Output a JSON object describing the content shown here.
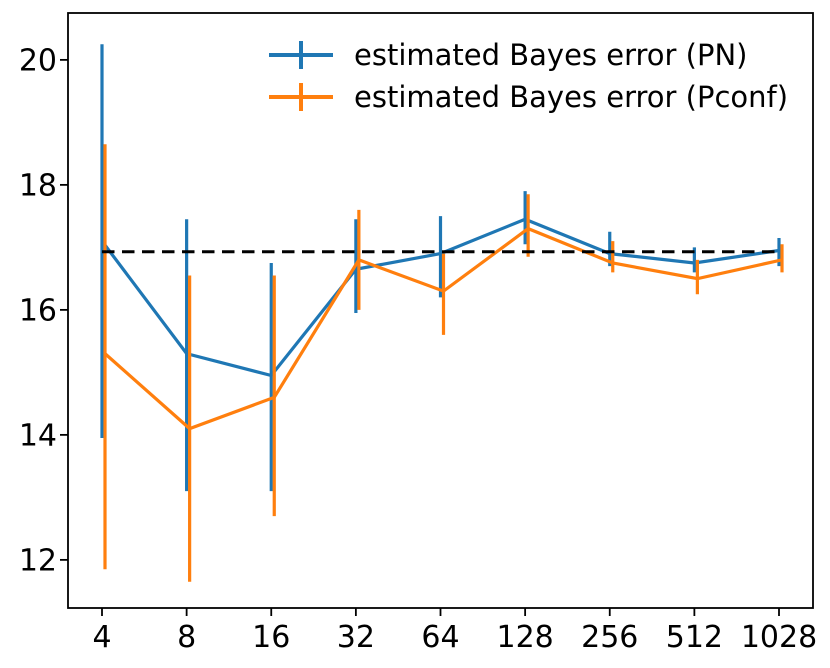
{
  "chart_data": {
    "type": "line",
    "title": "",
    "xlabel": "",
    "ylabel": "",
    "categories": [
      "4",
      "8",
      "16",
      "32",
      "64",
      "128",
      "256",
      "512",
      "1028"
    ],
    "y_axis": {
      "ticks": [
        12,
        14,
        16,
        18,
        20
      ],
      "lim": [
        11.23,
        20.75
      ]
    },
    "grid": false,
    "legend_position": "upper-right",
    "legend_frame": false,
    "reference_line": {
      "value": 16.93,
      "style": "dashed",
      "color": "#000000"
    },
    "series": [
      {
        "name": "estimated Bayes error (PN)",
        "color": "#1f77b4",
        "marker": "errorbar-plus",
        "values": [
          17.1,
          15.3,
          14.95,
          16.65,
          16.9,
          17.45,
          16.9,
          16.75,
          16.95
        ],
        "err_low": [
          13.95,
          13.1,
          13.1,
          15.95,
          16.2,
          17.05,
          16.7,
          16.6,
          16.7
        ],
        "err_high": [
          20.25,
          17.45,
          16.75,
          17.45,
          17.5,
          17.9,
          17.25,
          17.0,
          17.15
        ]
      },
      {
        "name": "estimated Bayes error (Pconf)",
        "color": "#ff7f0e",
        "marker": "errorbar-plus",
        "values": [
          15.3,
          14.1,
          14.6,
          16.8,
          16.3,
          17.3,
          16.75,
          16.5,
          16.8
        ],
        "err_low": [
          11.85,
          11.65,
          12.7,
          16.0,
          15.6,
          16.85,
          16.6,
          16.25,
          16.6
        ],
        "err_high": [
          18.65,
          16.55,
          16.55,
          17.6,
          16.9,
          17.85,
          17.1,
          16.8,
          17.05
        ]
      }
    ],
    "colors": {
      "axis": "#000000",
      "background": "#ffffff"
    }
  }
}
